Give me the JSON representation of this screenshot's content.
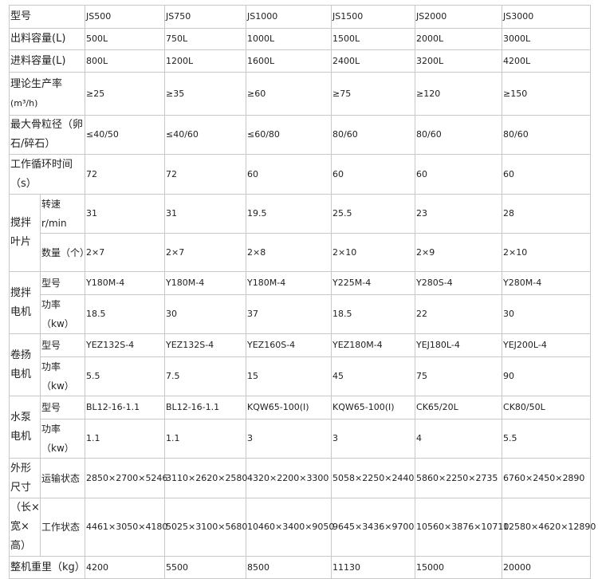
{
  "models": [
    "JS500",
    "JS750",
    "JS1000",
    "JS1500",
    "JS2000",
    "JS3000"
  ],
  "rows": [
    {
      "label": "型号",
      "values": [
        "JS500",
        "JS750",
        "JS1000",
        "JS1500",
        "JS2000",
        "JS3000"
      ]
    },
    {
      "label": "出料容量(L)",
      "values": [
        "500L",
        "750L",
        "1000L",
        "1500L",
        "2000L",
        "3000L"
      ]
    },
    {
      "label": "进料容量(L)",
      "values": [
        "800L",
        "1200L",
        "1600L",
        "2400L",
        "3200L",
        "4200L"
      ]
    },
    {
      "label": "理论生产率",
      "unit": "(m³/h)",
      "values": [
        "≥25",
        "≥35",
        "≥60",
        "≥75",
        "≥120",
        "≥150"
      ]
    },
    {
      "label": "最大骨粒径（卵石/碎石）",
      "values": [
        "≤40/50",
        "≤40/60",
        "≤60/80",
        "80/60",
        "80/60",
        "80/60"
      ]
    },
    {
      "label": "工作循环时间（s）",
      "values": [
        "72",
        "72",
        "60",
        "60",
        "60",
        "60"
      ]
    }
  ],
  "groups": [
    {
      "label": "搅拌叶片",
      "rows": [
        {
          "label": "转速r/min",
          "values": [
            "31",
            "31",
            "19.5",
            "25.5",
            "23",
            "28"
          ]
        },
        {
          "label": "数量（个）",
          "values": [
            "2×7",
            "2×7",
            "2×8",
            "2×10",
            "2×9",
            "2×10"
          ]
        }
      ]
    },
    {
      "label": "搅拌电机",
      "rows": [
        {
          "label": "型号",
          "values": [
            "Y180M-4",
            "Y180M-4",
            "Y180M-4",
            "Y225M-4",
            "Y280S-4",
            "Y280M-4"
          ]
        },
        {
          "label": "功率（kw）",
          "values": [
            "18.5",
            "30",
            "37",
            "18.5",
            "22",
            "30"
          ]
        }
      ]
    },
    {
      "label": "卷扬电机",
      "rows": [
        {
          "label": "型号",
          "values": [
            "YEZ132S-4",
            "YEZ132S-4",
            "YEZ160S-4",
            "YEZ180M-4",
            "YEJ180L-4",
            "YEJ200L-4"
          ]
        },
        {
          "label": "功率（kw）",
          "values": [
            "5.5",
            "7.5",
            "15",
            "45",
            "75",
            "90"
          ]
        }
      ]
    },
    {
      "label": "水泵电机",
      "rows": [
        {
          "label": "型号",
          "values": [
            "BL12-16-1.1",
            "BL12-16-1.1",
            "KQW65-100(I)",
            "KQW65-100(I)",
            "CK65/20L",
            "CK80/50L"
          ]
        },
        {
          "label": "功率（kw）",
          "values": [
            "1.1",
            "1.1",
            "3",
            "3",
            "4",
            "5.5"
          ]
        }
      ]
    },
    {
      "label": "外形尺寸",
      "label2": "（长×宽×高）",
      "rows": [
        {
          "label": "运输状态",
          "values": [
            "2850×2700×5246",
            "3110×2620×2580",
            "4320×2200×3300",
            "5058×2250×2440",
            "5860×2250×2735",
            "6760×2450×2890"
          ]
        },
        {
          "label": "工作状态",
          "values": [
            "4461×3050×4180",
            "5025×3100×5680",
            "10460×3400×9050",
            "9645×3436×9700",
            "10560×3876×10710",
            "12580×4620×12890"
          ]
        }
      ]
    }
  ],
  "weight": {
    "label": "整机重里（kg）",
    "values": [
      "4200",
      "5500",
      "8500",
      "11130",
      "15000",
      "20000"
    ]
  }
}
